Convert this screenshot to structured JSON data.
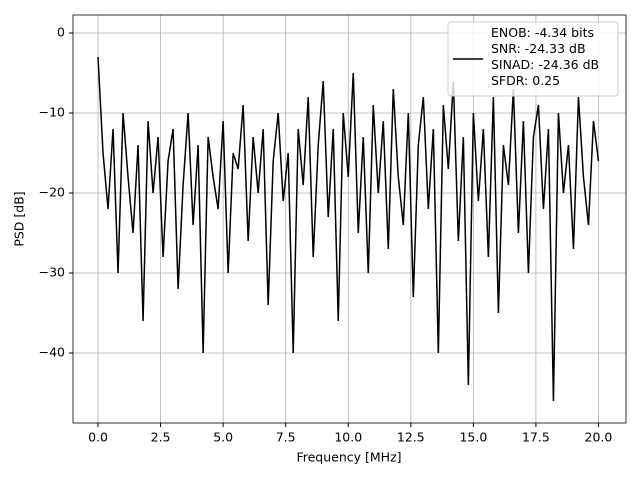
{
  "chart_data": {
    "type": "line",
    "xlabel": "Frequency [MHz]",
    "ylabel": "PSD [dB]",
    "x": [
      0,
      0.2,
      0.4,
      0.6,
      0.8,
      1,
      1.2,
      1.4,
      1.6,
      1.8,
      2,
      2.2,
      2.4,
      2.6,
      2.8,
      3,
      3.2,
      3.4,
      3.6,
      3.8,
      4,
      4.2,
      4.4,
      4.6,
      4.8,
      5,
      5.2,
      5.4,
      5.6,
      5.8,
      6,
      6.2,
      6.4,
      6.6,
      6.8,
      7,
      7.2,
      7.4,
      7.6,
      7.8,
      8,
      8.2,
      8.4,
      8.6,
      8.8,
      9,
      9.2,
      9.4,
      9.6,
      9.8,
      10,
      10.2,
      10.4,
      10.6,
      10.8,
      11,
      11.2,
      11.4,
      11.6,
      11.8,
      12,
      12.2,
      12.4,
      12.6,
      12.8,
      13,
      13.2,
      13.4,
      13.6,
      13.8,
      14,
      14.2,
      14.4,
      14.6,
      14.8,
      15,
      15.2,
      15.4,
      15.6,
      15.8,
      16,
      16.2,
      16.4,
      16.6,
      16.8,
      17,
      17.2,
      17.4,
      17.6,
      17.8,
      18,
      18.2,
      18.4,
      18.6,
      18.8,
      19,
      19.2,
      19.4,
      19.6,
      19.8,
      20
    ],
    "series": [
      {
        "name": "ENOB: -4.34 bits\nSNR: -24.33 dB\nSINAD: -24.36 dB\nSFDR: 0.25",
        "color": "#000000",
        "values": [
          -3,
          -15,
          -22,
          -12,
          -30,
          -10,
          -18,
          -25,
          -14,
          -36,
          -11,
          -20,
          -13,
          -28,
          -16,
          -12,
          -32,
          -19,
          -10,
          -24,
          -14,
          -40,
          -13,
          -18,
          -22,
          -11,
          -30,
          -15,
          -17,
          -9,
          -26,
          -13,
          -20,
          -12,
          -34,
          -16,
          -10,
          -21,
          -15,
          -40,
          -12,
          -19,
          -8,
          -28,
          -14,
          -6,
          -23,
          -12,
          -36,
          -10,
          -18,
          -5,
          -25,
          -13,
          -30,
          -9,
          -20,
          -11,
          -27,
          -7,
          -18,
          -24,
          -10,
          -33,
          -14,
          -8,
          -22,
          -12,
          -40,
          -9,
          -17,
          -6,
          -26,
          -13,
          -44,
          -10,
          -21,
          -12,
          -28,
          -8,
          -35,
          -14,
          -19,
          -7,
          -25,
          -11,
          -30,
          -13,
          -9,
          -22,
          -12,
          -46,
          -10,
          -20,
          -14,
          -27,
          -8,
          -18,
          -24,
          -11,
          -16
        ]
      }
    ],
    "xlim": [
      -1,
      21.1
    ],
    "ylim": [
      -48.75,
      2.25
    ],
    "xticks": [
      {
        "value": 0,
        "label": "0.0"
      },
      2.5,
      {
        "value": 5,
        "label": "5.0"
      },
      7.5,
      {
        "value": 10,
        "label": "10.0"
      },
      12.5,
      {
        "value": 15,
        "label": "15.0"
      },
      17.5,
      {
        "value": 20,
        "label": "20.0"
      }
    ],
    "yticks": [
      {
        "value": -40,
        "label": "−40"
      },
      {
        "value": -30,
        "label": "−30"
      },
      {
        "value": -20,
        "label": "−20"
      },
      {
        "value": -10,
        "label": "−10"
      },
      0
    ],
    "grid": true,
    "legend": "upper right"
  }
}
